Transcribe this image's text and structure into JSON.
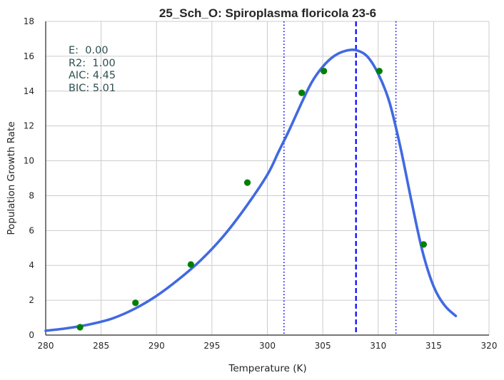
{
  "chart_data": {
    "type": "line",
    "title": "25_Sch_O: Spiroplasma floricola 23-6",
    "xlabel": "Temperature (K)",
    "ylabel": "Population Growth Rate",
    "xlim": [
      280,
      320
    ],
    "ylim": [
      0,
      18
    ],
    "xticks": [
      280,
      285,
      290,
      295,
      300,
      305,
      310,
      315,
      320
    ],
    "yticks": [
      0,
      2,
      4,
      6,
      8,
      10,
      12,
      14,
      16,
      18
    ],
    "grid": true,
    "stats": [
      "E:  0.00",
      "R2:  1.00",
      "AIC: 4.45",
      "BIC: 5.01"
    ],
    "series": [
      {
        "kind": "fit-line",
        "color": "#4169e1",
        "x": [
          280,
          282,
          284,
          286,
          288,
          290,
          292,
          294,
          296,
          298,
          300,
          301,
          302,
          303,
          304,
          305,
          306,
          307,
          308,
          309,
          310,
          311,
          312,
          313,
          314,
          315,
          316,
          317
        ],
        "y": [
          0.25,
          0.4,
          0.62,
          0.95,
          1.5,
          2.25,
          3.2,
          4.3,
          5.65,
          7.3,
          9.2,
          10.5,
          11.8,
          13.2,
          14.5,
          15.4,
          16.0,
          16.3,
          16.35,
          16.0,
          15.0,
          13.4,
          10.8,
          7.7,
          4.8,
          2.8,
          1.7,
          1.1
        ]
      },
      {
        "kind": "observed-points",
        "color": "#008000",
        "x": [
          283.1,
          288.1,
          293.1,
          298.2,
          303.1,
          305.1,
          310.1,
          314.1
        ],
        "y": [
          0.45,
          1.85,
          4.05,
          8.75,
          13.9,
          15.15,
          15.15,
          5.2
        ]
      }
    ],
    "reference_lines": [
      {
        "x": 308.0,
        "style": "dashed",
        "color": "#0000ff"
      },
      {
        "x": 301.5,
        "style": "dotted",
        "color": "#0000ff"
      },
      {
        "x": 311.6,
        "style": "dotted",
        "color": "#0000ff"
      }
    ]
  }
}
